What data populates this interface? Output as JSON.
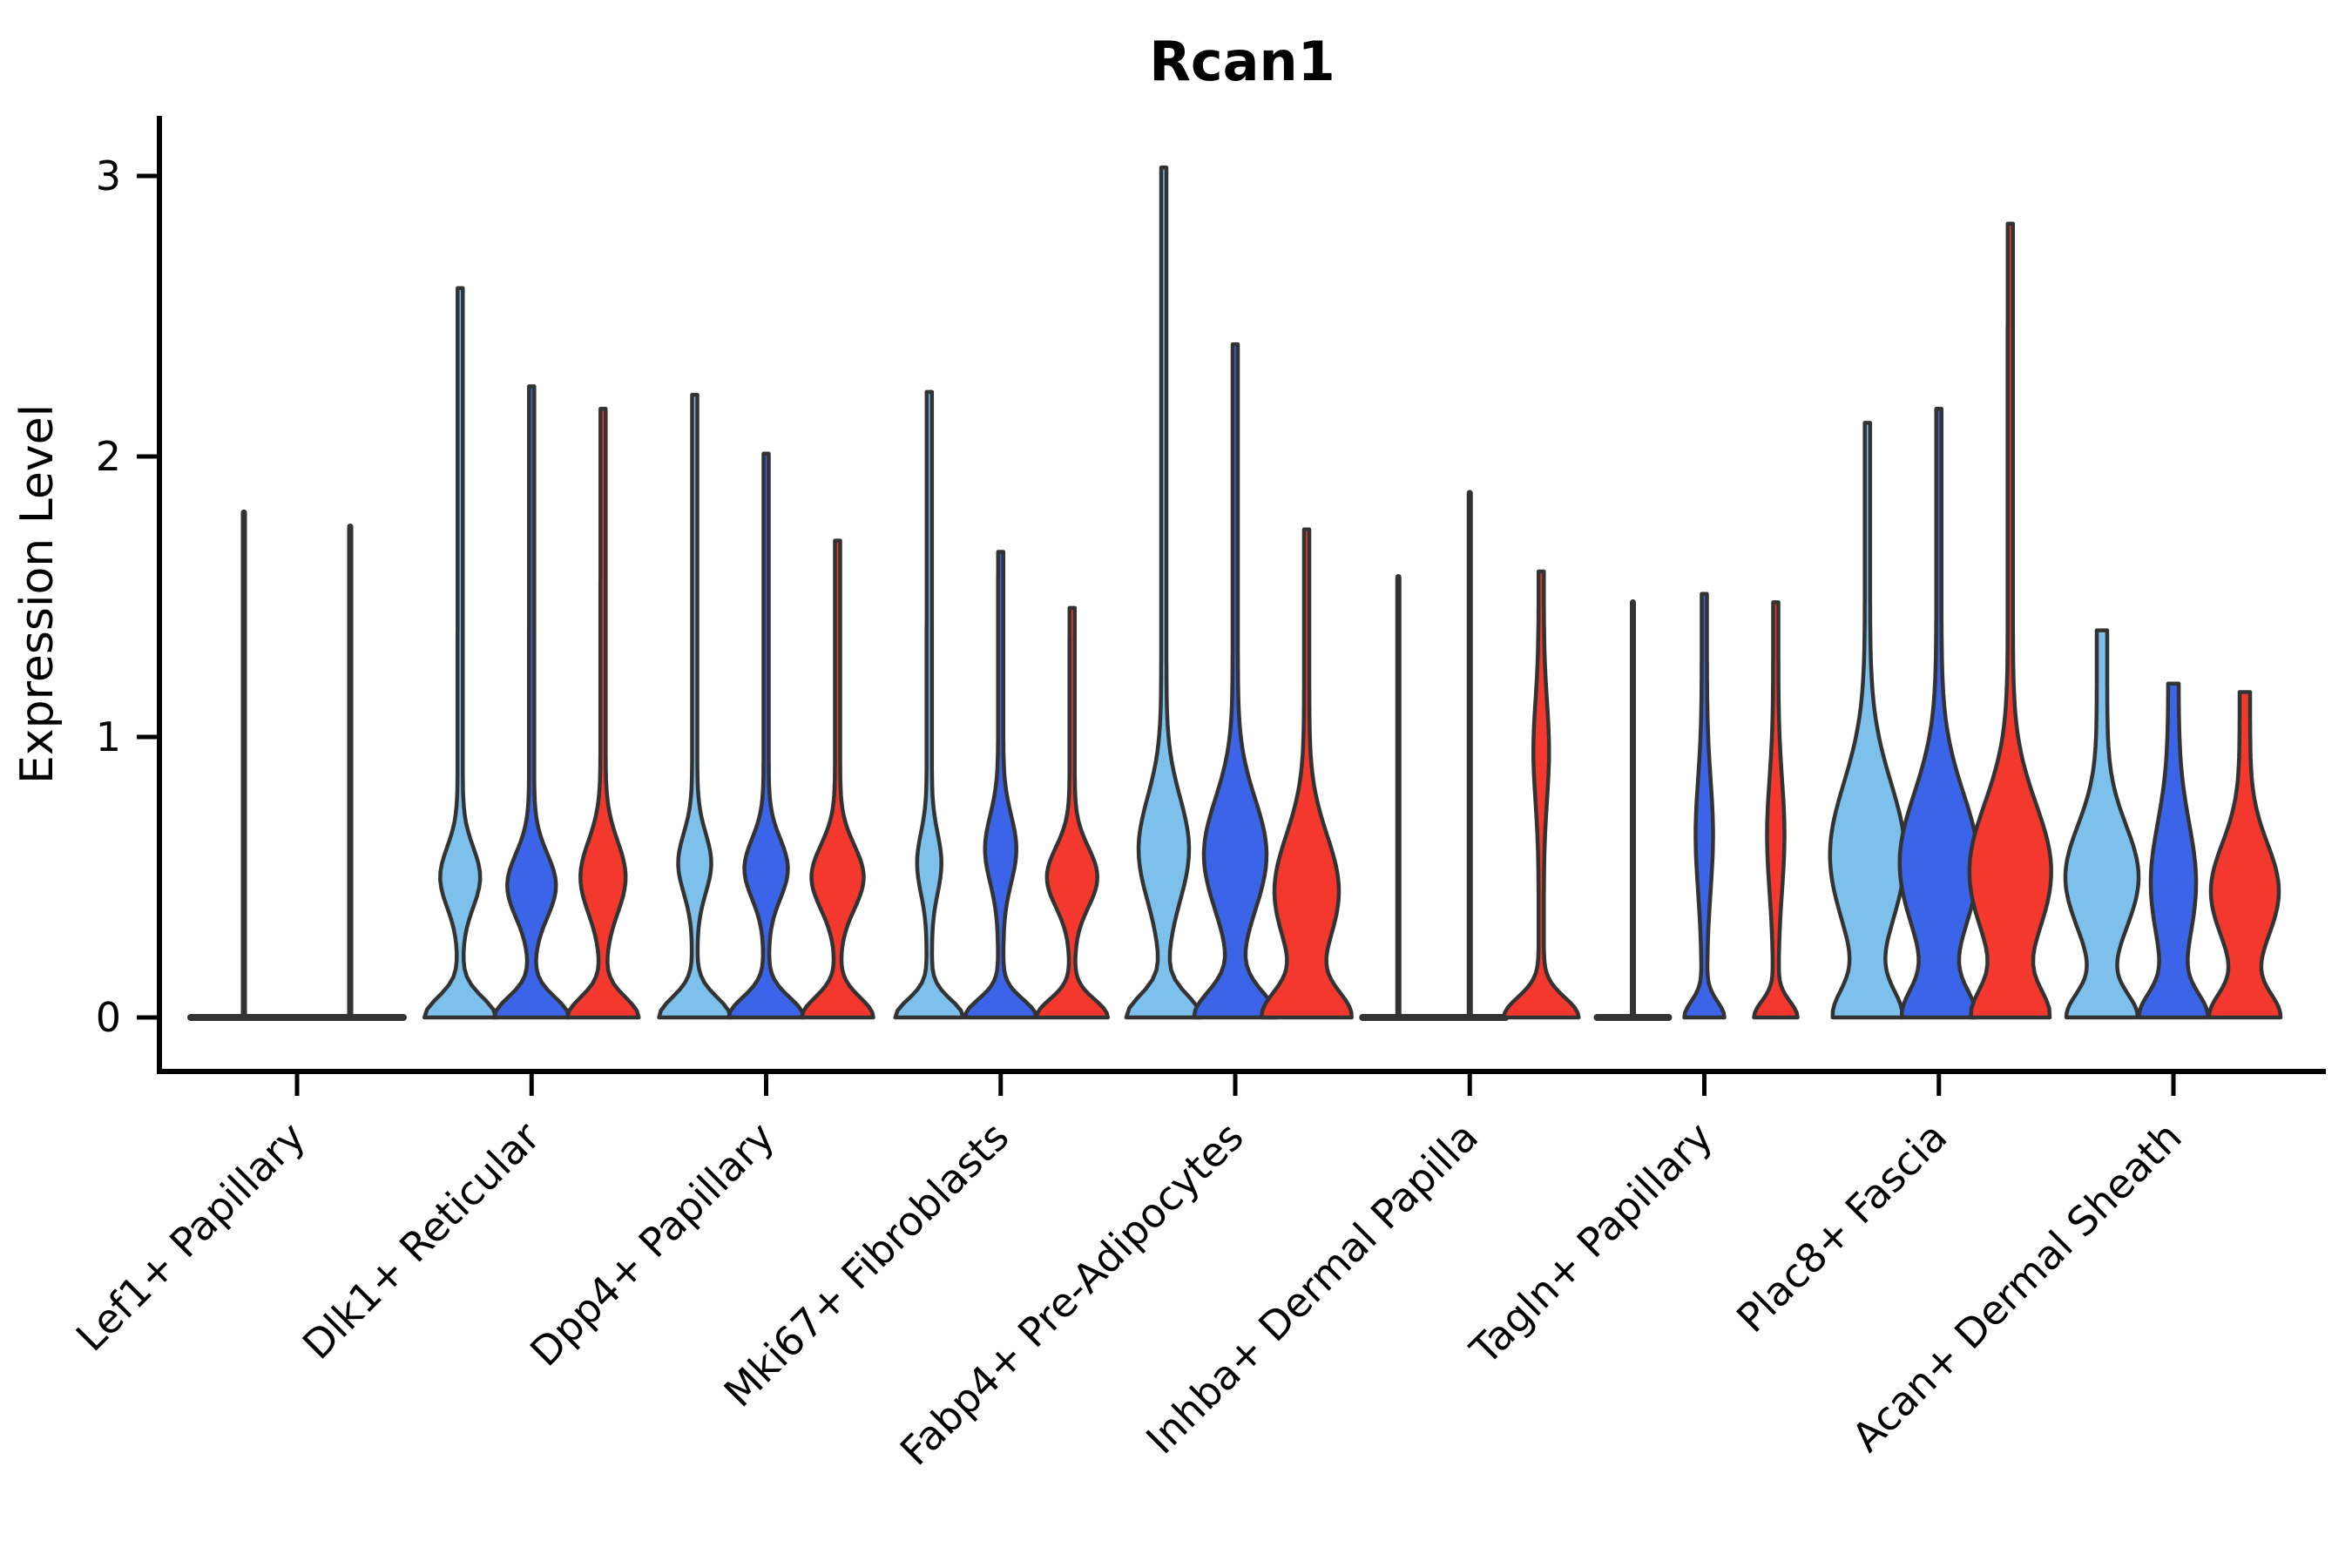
{
  "chart_data": {
    "type": "violin",
    "title": "Rcan1",
    "ylabel": "Expression Level",
    "xlabel": "",
    "ylim": [
      0,
      3.1
    ],
    "yticks": [
      0,
      1,
      2,
      3
    ],
    "grid": false,
    "legend": "none",
    "outline_color": "#333333",
    "series_colors": {
      "light-blue": "#7CC0EB",
      "dark-blue": "#3B64E8",
      "red": "#F5382E"
    },
    "categories": [
      "Lef1+ Papillary",
      "Dlk1+ Reticular",
      "Dpp4+ Papillary",
      "Mki67+ Fibroblasts",
      "Fabp4+ Pre-Adipocytes",
      "Inhba+ Dermal Papilla",
      "Tagln+ Papillary",
      "Plac8+ Fascia",
      "Acan+ Dermal Sheath"
    ],
    "groups": [
      {
        "category": "Lef1+ Papillary",
        "violins": [
          {
            "series": "light-blue",
            "max_expression": 1.8,
            "profile": "spike"
          },
          {
            "series": "dark-blue",
            "max_expression": 1.75,
            "profile": "spike"
          }
        ]
      },
      {
        "category": "Dlk1+ Reticular",
        "violins": [
          {
            "series": "light-blue",
            "max_expression": 2.6,
            "profile": "kde",
            "base_halfwidth": 38,
            "base_decay": 0.1,
            "bulge_halfwidth": 20,
            "bulge_center": 0.5,
            "bulge_spread": 0.15,
            "tip_halfwidth": 3
          },
          {
            "series": "dark-blue",
            "max_expression": 2.25,
            "profile": "kde",
            "base_halfwidth": 40,
            "base_decay": 0.1,
            "bulge_halfwidth": 25,
            "bulge_center": 0.47,
            "bulge_spread": 0.16,
            "tip_halfwidth": 3
          },
          {
            "series": "red",
            "max_expression": 2.17,
            "profile": "kde",
            "base_halfwidth": 38,
            "base_decay": 0.1,
            "bulge_halfwidth": 23,
            "bulge_center": 0.5,
            "bulge_spread": 0.18,
            "tip_halfwidth": 3
          }
        ]
      },
      {
        "category": "Dpp4+ Papillary",
        "violins": [
          {
            "series": "light-blue",
            "max_expression": 2.22,
            "profile": "kde",
            "base_halfwidth": 38,
            "base_decay": 0.1,
            "bulge_halfwidth": 16,
            "bulge_center": 0.55,
            "bulge_spread": 0.15,
            "tip_halfwidth": 3
          },
          {
            "series": "dark-blue",
            "max_expression": 2.01,
            "profile": "kde",
            "base_halfwidth": 40,
            "base_decay": 0.1,
            "bulge_halfwidth": 22,
            "bulge_center": 0.53,
            "bulge_spread": 0.15,
            "tip_halfwidth": 3
          },
          {
            "series": "red",
            "max_expression": 1.7,
            "profile": "kde",
            "base_halfwidth": 38,
            "base_decay": 0.1,
            "bulge_halfwidth": 27,
            "bulge_center": 0.5,
            "bulge_spread": 0.16,
            "tip_halfwidth": 3
          }
        ]
      },
      {
        "category": "Mki67+ Fibroblasts",
        "violins": [
          {
            "series": "light-blue",
            "max_expression": 2.23,
            "profile": "kde",
            "base_halfwidth": 36,
            "base_decay": 0.09,
            "bulge_halfwidth": 11,
            "bulge_center": 0.55,
            "bulge_spread": 0.15,
            "tip_halfwidth": 3
          },
          {
            "series": "dark-blue",
            "max_expression": 1.66,
            "profile": "kde",
            "base_halfwidth": 38,
            "base_decay": 0.09,
            "bulge_halfwidth": 15,
            "bulge_center": 0.6,
            "bulge_spread": 0.17,
            "tip_halfwidth": 3
          },
          {
            "series": "red",
            "max_expression": 1.46,
            "profile": "kde",
            "base_halfwidth": 38,
            "base_decay": 0.09,
            "bulge_halfwidth": 26,
            "bulge_center": 0.5,
            "bulge_spread": 0.15,
            "tip_halfwidth": 3
          }
        ]
      },
      {
        "category": "Fabp4+ Pre-Adipocytes",
        "violins": [
          {
            "series": "light-blue",
            "max_expression": 3.03,
            "profile": "kde",
            "base_halfwidth": 40,
            "base_decay": 0.11,
            "bulge_halfwidth": 26,
            "bulge_center": 0.6,
            "bulge_spread": 0.26,
            "tip_halfwidth": 3
          },
          {
            "series": "dark-blue",
            "max_expression": 2.4,
            "profile": "kde",
            "base_halfwidth": 44,
            "base_decay": 0.13,
            "bulge_halfwidth": 33,
            "bulge_center": 0.58,
            "bulge_spread": 0.28,
            "tip_halfwidth": 3
          },
          {
            "series": "red",
            "max_expression": 1.74,
            "profile": "kde",
            "base_halfwidth": 46,
            "base_decay": 0.13,
            "bulge_halfwidth": 34,
            "bulge_center": 0.45,
            "bulge_spread": 0.28,
            "tip_halfwidth": 3
          }
        ]
      },
      {
        "category": "Inhba+ Dermal Papilla",
        "violins": [
          {
            "series": "light-blue",
            "max_expression": 1.57,
            "profile": "spike"
          },
          {
            "series": "dark-blue",
            "max_expression": 1.87,
            "profile": "spike"
          },
          {
            "series": "red",
            "max_expression": 1.59,
            "profile": "kde",
            "base_halfwidth": 40,
            "base_decay": 0.1,
            "bulge_halfwidth": 6,
            "bulge_center": 0.95,
            "bulge_spread": 0.25,
            "tip_halfwidth": 3
          }
        ]
      },
      {
        "category": "Tagln+ Papillary",
        "violins": [
          {
            "series": "light-blue",
            "max_expression": 1.48,
            "profile": "spike"
          },
          {
            "series": "dark-blue",
            "max_expression": 1.51,
            "profile": "kde",
            "base_halfwidth": 20,
            "base_decay": 0.08,
            "bulge_halfwidth": 7,
            "bulge_center": 0.65,
            "bulge_spread": 0.28,
            "tip_halfwidth": 3
          },
          {
            "series": "red",
            "max_expression": 1.48,
            "profile": "kde",
            "base_halfwidth": 22,
            "base_decay": 0.08,
            "bulge_halfwidth": 7,
            "bulge_center": 0.65,
            "bulge_spread": 0.28,
            "tip_halfwidth": 3
          }
        ]
      },
      {
        "category": "Plac8+ Fascia",
        "violins": [
          {
            "series": "light-blue",
            "max_expression": 2.12,
            "profile": "kde",
            "base_halfwidth": 34,
            "base_decay": 0.14,
            "bulge_halfwidth": 40,
            "bulge_center": 0.58,
            "bulge_spread": 0.36,
            "tip_halfwidth": 3
          },
          {
            "series": "dark-blue",
            "max_expression": 2.17,
            "profile": "kde",
            "base_halfwidth": 36,
            "base_decay": 0.14,
            "bulge_halfwidth": 42,
            "bulge_center": 0.55,
            "bulge_spread": 0.35,
            "tip_halfwidth": 3
          },
          {
            "series": "red",
            "max_expression": 2.83,
            "profile": "kde",
            "base_halfwidth": 38,
            "base_decay": 0.14,
            "bulge_halfwidth": 44,
            "bulge_center": 0.52,
            "bulge_spread": 0.34,
            "tip_halfwidth": 3
          }
        ]
      },
      {
        "category": "Acan+ Dermal Sheath",
        "violins": [
          {
            "series": "light-blue",
            "max_expression": 1.38,
            "profile": "kde",
            "base_halfwidth": 34,
            "base_decay": 0.12,
            "bulge_halfwidth": 36,
            "bulge_center": 0.5,
            "bulge_spread": 0.26,
            "tip_halfwidth": 6
          },
          {
            "series": "dark-blue",
            "max_expression": 1.19,
            "profile": "kde",
            "base_halfwidth": 32,
            "base_decay": 0.12,
            "bulge_halfwidth": 20,
            "bulge_center": 0.48,
            "bulge_spread": 0.3,
            "tip_halfwidth": 6
          },
          {
            "series": "red",
            "max_expression": 1.16,
            "profile": "kde",
            "base_halfwidth": 34,
            "base_decay": 0.12,
            "bulge_halfwidth": 33,
            "bulge_center": 0.45,
            "bulge_spread": 0.24,
            "tip_halfwidth": 6
          }
        ]
      }
    ]
  }
}
